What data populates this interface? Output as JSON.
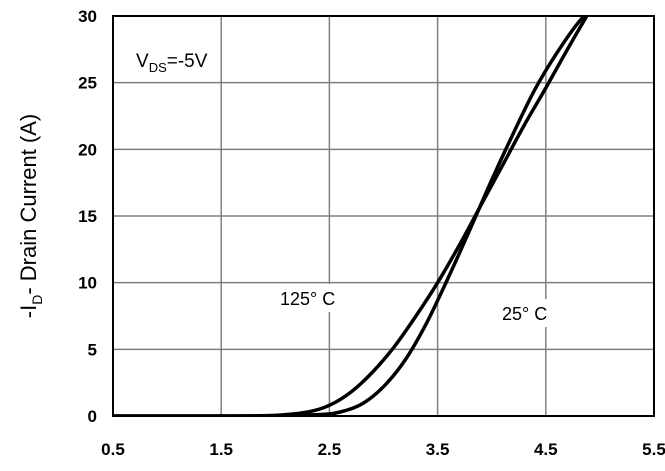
{
  "chart_data": {
    "type": "line",
    "ylabel_prefix": "-I",
    "ylabel_sub": "D",
    "ylabel_rest": "- Drain Current (A)",
    "xlabel": "",
    "xlim": [
      0.5,
      5.5
    ],
    "ylim": [
      0,
      30
    ],
    "x_ticks": [
      "0.5",
      "1.5",
      "2.5",
      "3.5",
      "4.5",
      "5.5"
    ],
    "y_ticks": [
      "0",
      "5",
      "10",
      "15",
      "20",
      "25",
      "30"
    ],
    "grid": true,
    "condition": {
      "main": "V",
      "sub": "DS",
      "rest": "=-5V"
    },
    "series": [
      {
        "name": "125° C",
        "label_text": "125° C",
        "x": [
          0.5,
          1.5,
          2.0,
          2.3,
          2.5,
          2.7,
          2.9,
          3.1,
          3.3,
          3.5,
          3.7,
          3.9,
          4.1,
          4.3,
          4.5,
          4.7,
          4.9
        ],
        "y": [
          0,
          0,
          0.05,
          0.3,
          0.8,
          1.8,
          3.3,
          5.2,
          7.5,
          10.0,
          12.8,
          15.8,
          18.8,
          21.8,
          24.6,
          27.5,
          30.3
        ]
      },
      {
        "name": "25° C",
        "label_text": "25° C",
        "x": [
          0.5,
          1.5,
          2.0,
          2.4,
          2.6,
          2.8,
          3.0,
          3.2,
          3.4,
          3.6,
          3.8,
          4.0,
          4.2,
          4.4,
          4.6,
          4.8,
          5.0
        ],
        "y": [
          0,
          0,
          0.02,
          0.1,
          0.3,
          0.9,
          2.2,
          4.2,
          7.0,
          10.4,
          14.0,
          17.7,
          21.2,
          24.5,
          27.2,
          29.5,
          31.2
        ]
      }
    ]
  }
}
